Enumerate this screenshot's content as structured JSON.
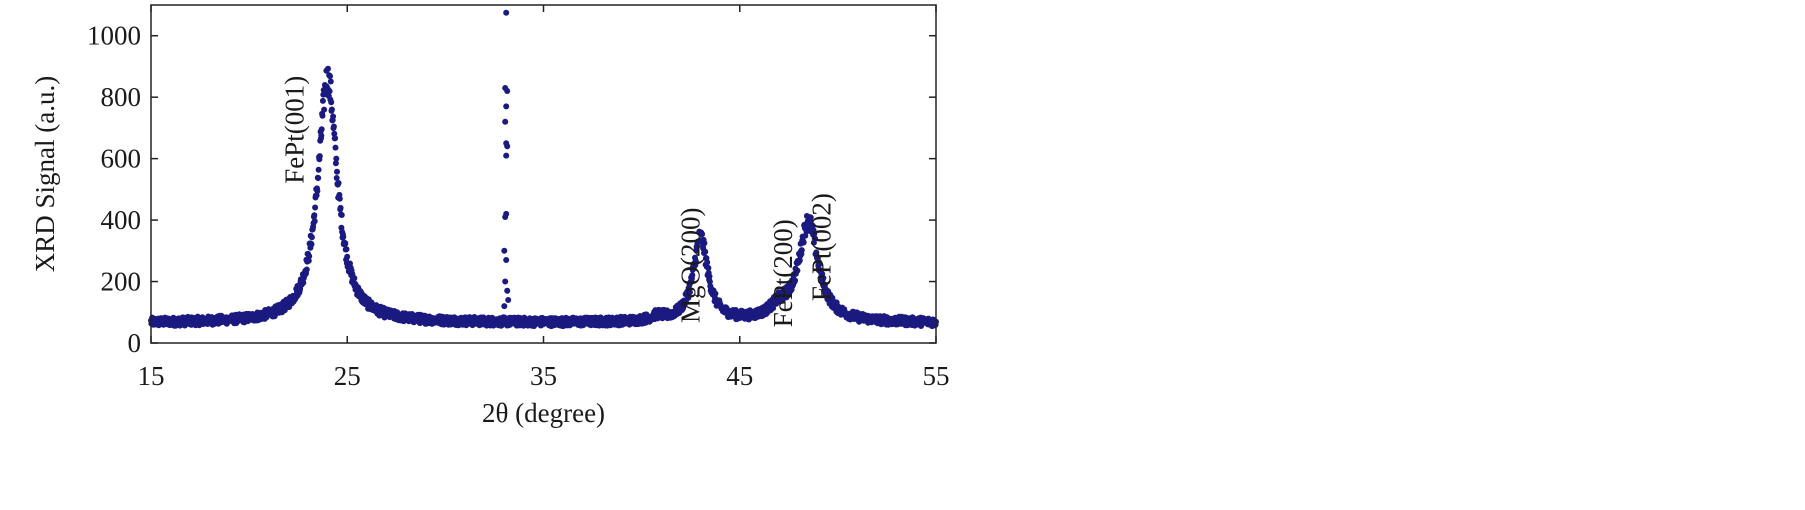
{
  "chart_data": {
    "type": "scatter",
    "xlabel": "2θ (degree)",
    "ylabel": "XRD Signal (a.u.)",
    "xlim": [
      15,
      55
    ],
    "ylim": [
      0,
      1100
    ],
    "xticks": [
      15,
      25,
      35,
      45,
      55
    ],
    "yticks": [
      0,
      200,
      400,
      600,
      800,
      1000
    ],
    "grid": false,
    "legend": "none",
    "marker_color": "#1a1a80",
    "background": 65,
    "peaks": [
      {
        "label": "FePt(001)",
        "x": 24.0,
        "y": 860,
        "width": 0.6
      },
      {
        "label": "MgO(200)",
        "x": 43.0,
        "y": 340,
        "width": 0.45
      },
      {
        "label": "FePt(200)",
        "x": 47.0,
        "y": 100,
        "width": 0.6
      },
      {
        "label": "FePt(002)",
        "x": 48.5,
        "y": 390,
        "width": 0.6
      }
    ],
    "spike_points": [
      {
        "x": 33.1,
        "y": 1075
      },
      {
        "x": 33.05,
        "y": 830
      },
      {
        "x": 33.15,
        "y": 820
      },
      {
        "x": 33.1,
        "y": 770
      },
      {
        "x": 33.05,
        "y": 720
      },
      {
        "x": 33.1,
        "y": 650
      },
      {
        "x": 33.15,
        "y": 640
      },
      {
        "x": 33.1,
        "y": 610
      },
      {
        "x": 33.1,
        "y": 420
      },
      {
        "x": 33.05,
        "y": 410
      },
      {
        "x": 33.0,
        "y": 300
      },
      {
        "x": 33.1,
        "y": 270
      },
      {
        "x": 33.05,
        "y": 200
      },
      {
        "x": 33.15,
        "y": 170
      },
      {
        "x": 33.2,
        "y": 140
      },
      {
        "x": 33.0,
        "y": 120
      }
    ]
  }
}
